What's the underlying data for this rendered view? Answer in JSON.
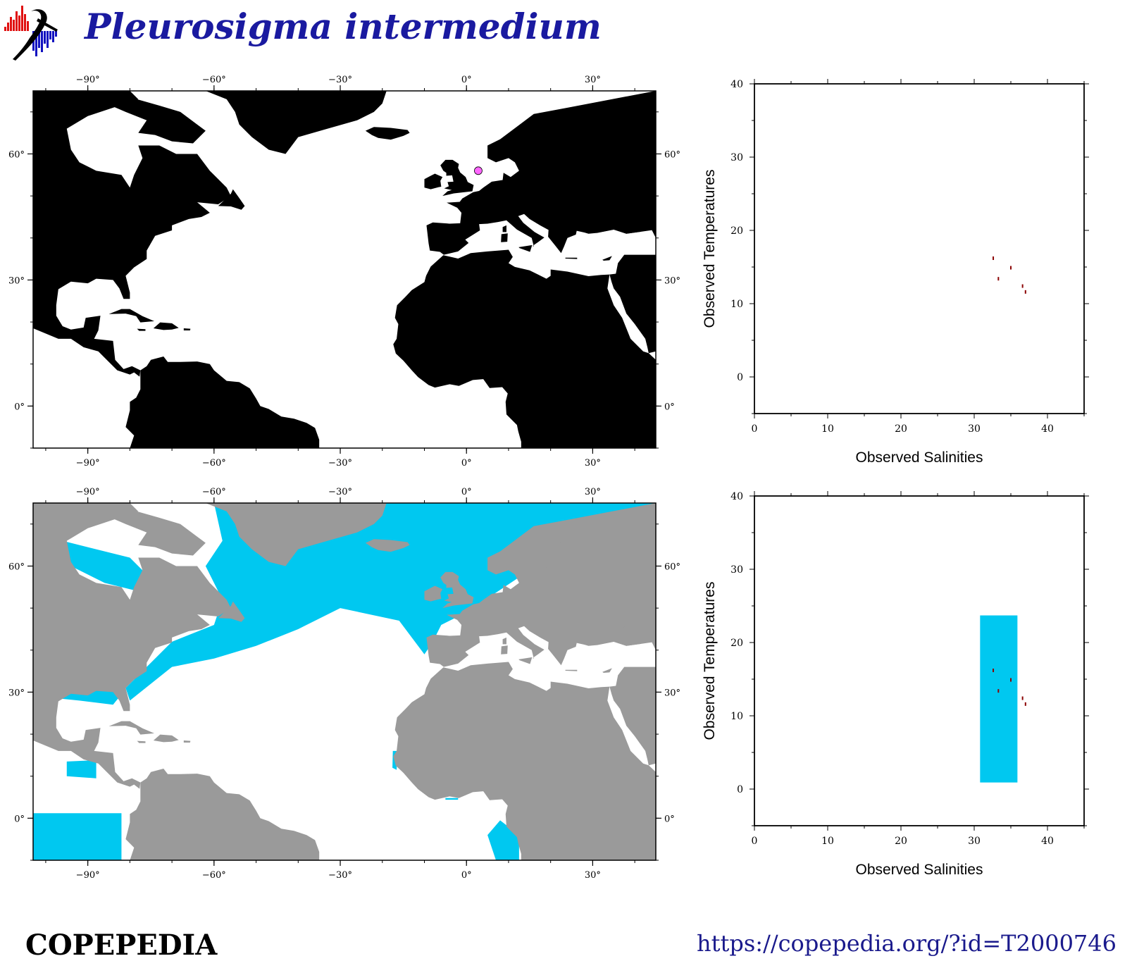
{
  "header": {
    "title": "Pleurosigma intermedium"
  },
  "footer": {
    "brand": "COPEPEDIA",
    "url": "https://copepedia.org/?id=T2000746"
  },
  "colors": {
    "land_top": "#000000",
    "land_bottom": "#9a9a9a",
    "habitat": "#00c8f0",
    "observation_fill": "#ff66ff",
    "observation_point": "#8b0000"
  },
  "chart_data": [
    {
      "type": "scatter",
      "name": "occurrence-map",
      "xlim": [
        -103,
        45
      ],
      "ylim": [
        -10,
        75
      ],
      "x_ticks": [
        -90,
        -60,
        -30,
        0,
        30
      ],
      "x_tick_labels": [
        "−90°",
        "−60°",
        "−30°",
        "0°",
        "30°"
      ],
      "y_ticks": [
        0,
        30,
        60
      ],
      "y_tick_labels": [
        "0°",
        "30°",
        "60°"
      ],
      "points": [
        {
          "lon": 2.8,
          "lat": 56
        }
      ]
    },
    {
      "type": "heatmap",
      "name": "habitat-map",
      "xlim": [
        -103,
        45
      ],
      "ylim": [
        -10,
        75
      ],
      "x_ticks": [
        -90,
        -60,
        -30,
        0,
        30
      ],
      "x_tick_labels": [
        "−90°",
        "−60°",
        "−30°",
        "0°",
        "30°"
      ],
      "y_ticks": [
        0,
        30,
        60
      ],
      "y_tick_labels": [
        "0°",
        "30°",
        "60°"
      ]
    },
    {
      "type": "scatter",
      "name": "ts-observed",
      "xlabel": "Observed Salinities",
      "ylabel": "Observed Temperatures",
      "xlim": [
        0,
        45
      ],
      "ylim": [
        -5,
        40
      ],
      "x_ticks": [
        0,
        10,
        20,
        30,
        40
      ],
      "y_ticks": [
        0,
        10,
        20,
        30,
        40
      ],
      "points": [
        {
          "x": 32.6,
          "y": 16.2
        },
        {
          "x": 33.3,
          "y": 13.4
        },
        {
          "x": 35.0,
          "y": 14.9
        },
        {
          "x": 36.6,
          "y": 12.4
        },
        {
          "x": 37.0,
          "y": 11.6
        }
      ]
    },
    {
      "type": "scatter",
      "name": "ts-habitat",
      "xlabel": "Observed Salinities",
      "ylabel": "Observed Temperatures",
      "xlim": [
        0,
        45
      ],
      "ylim": [
        -5,
        40
      ],
      "x_ticks": [
        0,
        10,
        20,
        30,
        40
      ],
      "y_ticks": [
        0,
        10,
        20,
        30,
        40
      ],
      "habitat_box": {
        "x_min": 30.8,
        "x_max": 35.9,
        "y_min": 0.9,
        "y_max": 23.7
      },
      "points": [
        {
          "x": 32.6,
          "y": 16.2
        },
        {
          "x": 33.3,
          "y": 13.4
        },
        {
          "x": 35.0,
          "y": 14.9
        },
        {
          "x": 36.6,
          "y": 12.4
        },
        {
          "x": 37.0,
          "y": 11.6
        }
      ]
    }
  ]
}
